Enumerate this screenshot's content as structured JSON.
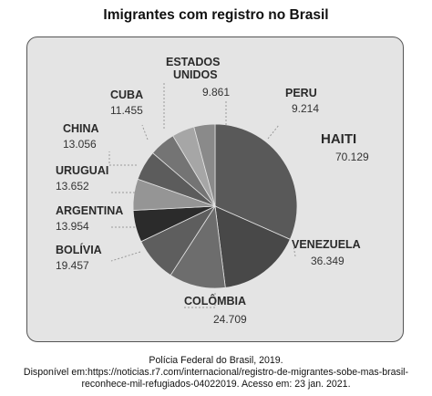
{
  "title": "Imigrantes com registro no Brasil",
  "source": {
    "line1": "Polícia Federal do Brasil, 2019.",
    "line2": "Disponível em:https://noticias.r7.com/internacional/registro-de-migrantes-sobe-mas-brasil-",
    "line3": "reconhece-mil-refugiados-04022019. Acesso em: 23 jan. 2021."
  },
  "chart_data": {
    "type": "pie",
    "title": "Imigrantes com registro no Brasil",
    "slices": [
      {
        "name": "HAITI",
        "value": 70129,
        "label": "70.129",
        "color": "#595959"
      },
      {
        "name": "VENEZUELA",
        "value": 36349,
        "label": "36.349",
        "color": "#484848"
      },
      {
        "name": "COLÔMBIA",
        "value": 24709,
        "label": "24.709",
        "color": "#6d6d6d"
      },
      {
        "name": "BOLÍVIA",
        "value": 19457,
        "label": "19.457",
        "color": "#5e5e5e"
      },
      {
        "name": "ARGENTINA",
        "value": 13954,
        "label": "13.954",
        "color": "#2b2b2b"
      },
      {
        "name": "URUGUAI",
        "value": 13652,
        "label": "13.652",
        "color": "#959595"
      },
      {
        "name": "CHINA",
        "value": 13056,
        "label": "13.056",
        "color": "#5c5c5c"
      },
      {
        "name": "CUBA",
        "value": 11455,
        "label": "11.455",
        "color": "#747474"
      },
      {
        "name": "ESTADOS UNIDOS",
        "value": 9861,
        "label": "9.861",
        "color": "#a6a6a6"
      },
      {
        "name": "PERU",
        "value": 9214,
        "label": "9.214",
        "color": "#8a8a8a"
      }
    ]
  }
}
